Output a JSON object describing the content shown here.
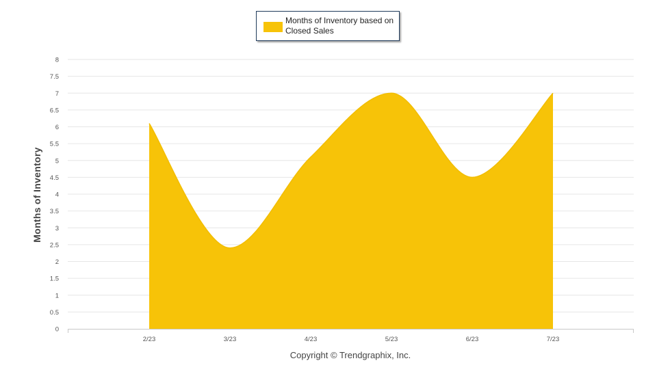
{
  "legend": {
    "label": "Months of Inventory based on Closed Sales",
    "color": "#f7c308"
  },
  "footer": {
    "copyright": "Copyright © Trendgraphix, Inc."
  },
  "chart_data": {
    "type": "area",
    "categories": [
      "2/23",
      "3/23",
      "4/23",
      "5/23",
      "6/23",
      "7/23"
    ],
    "series": [
      {
        "name": "Months of Inventory based on Closed Sales",
        "values": [
          6.1,
          2.4,
          5.1,
          7.0,
          4.5,
          7.0
        ],
        "color": "#f7c308"
      }
    ],
    "ylabel": "Months of Inventory",
    "ylim": [
      0,
      8
    ],
    "yticks": [
      "0",
      "0.5",
      "1",
      "1.5",
      "2",
      "2.5",
      "3",
      "3.5",
      "4",
      "4.5",
      "5",
      "5.5",
      "6",
      "6.5",
      "7",
      "7.5",
      "8"
    ],
    "grid": true,
    "legend_position": "top-center",
    "curve": "smooth"
  }
}
